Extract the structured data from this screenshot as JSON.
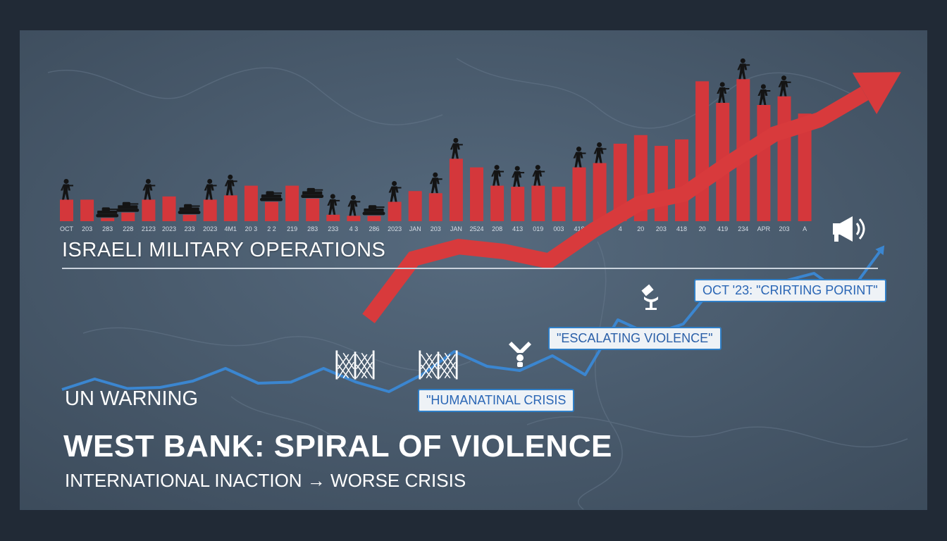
{
  "headline": {
    "section_label": "ISRAELI MILITARY OPERATIONS",
    "warning_label": "UN WARNING",
    "title": "WEST BANK: SPIRAL OF VIOLENCE",
    "subtitle": "INTERNATIONAL INACTION → WORSE CRISIS"
  },
  "callouts": {
    "humanitarian": "\"HUMANATINAL CRISIS",
    "escalating": "\"ESCALATING VIOLENCE\"",
    "tipping": "OCT '23: \"CRIRTING PORINT\""
  },
  "icons": [
    "soldier-icon",
    "tank-icon",
    "fence-icon",
    "protest-icon",
    "megaphone-icon"
  ],
  "colors": {
    "bars": "#d4373b",
    "trend_arrow": "#d83a3c",
    "blue_line": "#3b86d0",
    "background": "#4b5d70"
  },
  "chart_data": [
    {
      "type": "bar",
      "name": "military operations",
      "categories": [
        "OCT",
        "203",
        "283",
        "228",
        "2123",
        "2023",
        "233",
        "2023",
        "4M1",
        "20 3",
        "2 2",
        "219",
        "283",
        "233",
        "4 3",
        "286",
        "2023",
        "JAN",
        "203",
        "JAN",
        "2524",
        "208",
        "413",
        "019",
        "003",
        "418",
        "20M",
        "4",
        "20",
        "203",
        "418",
        "20",
        "419",
        "234",
        "APR",
        "203",
        "A"
      ],
      "values": [
        1.0,
        1.0,
        0.15,
        0.4,
        1.0,
        1.15,
        0.3,
        1.0,
        1.2,
        1.65,
        0.9,
        1.65,
        1.05,
        0.3,
        0.25,
        0.25,
        0.9,
        1.4,
        1.3,
        2.9,
        2.5,
        1.65,
        1.6,
        1.65,
        1.6,
        2.5,
        2.7,
        3.6,
        4.0,
        3.5,
        3.8,
        6.5,
        5.5,
        6.6,
        5.4,
        5.8,
        5.0
      ],
      "icons_on_bars": [
        "soldier",
        "",
        "tank",
        "tank",
        "soldier",
        "",
        "tank",
        "soldier",
        "soldier",
        "",
        "tank",
        "",
        "tank",
        "soldier",
        "soldier",
        "tank",
        "soldier",
        "",
        "soldier",
        "soldier",
        "",
        "soldier",
        "soldier",
        "soldier",
        "",
        "soldier",
        "soldier",
        "",
        "",
        "",
        "",
        "",
        "soldier",
        "soldier",
        "soldier",
        "soldier",
        ""
      ],
      "ylim": [
        0,
        7.2
      ]
    },
    {
      "type": "line",
      "name": "blue trend",
      "x": [
        0,
        1,
        2,
        3,
        4,
        5,
        6,
        7,
        8,
        9,
        10,
        11,
        12,
        13,
        14,
        15,
        16,
        17,
        18,
        19,
        20,
        21,
        22,
        23,
        24,
        25
      ],
      "y": [
        1.0,
        1.5,
        1.05,
        1.1,
        1.4,
        2.0,
        1.3,
        1.35,
        2.0,
        1.35,
        0.9,
        1.7,
        2.8,
        2.1,
        1.9,
        2.6,
        1.7,
        4.3,
        3.6,
        4.1,
        6.0,
        5.2,
        6.1,
        6.5,
        5.4,
        7.5
      ],
      "ylim": [
        0,
        10
      ]
    },
    {
      "type": "line",
      "name": "red arrow",
      "x": [
        0,
        1,
        2,
        3,
        4,
        5,
        6,
        7,
        8,
        9,
        10,
        11
      ],
      "y": [
        1.2,
        3.7,
        4.2,
        4.0,
        3.6,
        4.9,
        6.0,
        6.4,
        7.7,
        8.9,
        9.5,
        10.6
      ],
      "ylim": [
        0,
        12
      ]
    }
  ]
}
